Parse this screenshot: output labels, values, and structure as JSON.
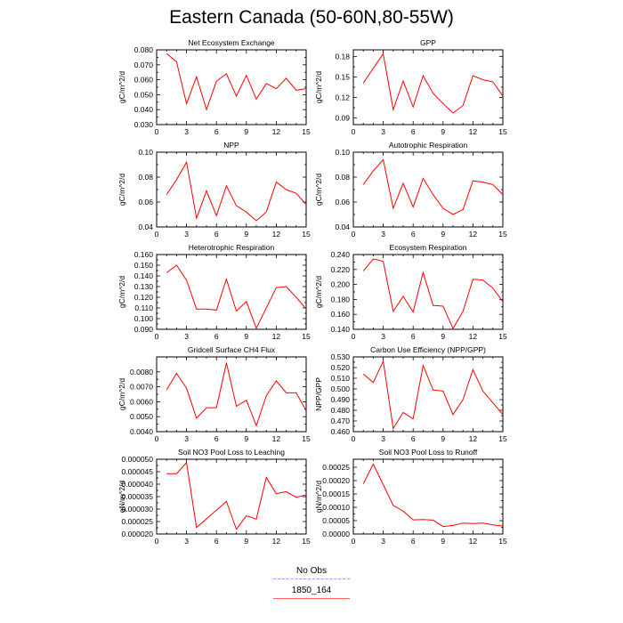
{
  "title": "Eastern Canada (50-60N,80-55W)",
  "legend": {
    "entries": [
      {
        "label": "No Obs",
        "color": "#9b9bf0",
        "dash": true
      },
      {
        "label": "1850_164",
        "color": "#ff6060",
        "dash": false
      }
    ]
  },
  "colors": {
    "series": "#ff0000"
  },
  "chart_data": [
    {
      "type": "line",
      "title": "Net Ecosystem Exchange",
      "ylabel": "gC/m^2/d",
      "xlim": [
        0,
        15
      ],
      "ylim": [
        0.03,
        0.08
      ],
      "xticks": [
        "0",
        "3",
        "6",
        "9",
        "12",
        "15"
      ],
      "yticks": [
        "0.030",
        "0.040",
        "0.050",
        "0.060",
        "0.070",
        "0.080"
      ],
      "series": [
        {
          "x": [
            1,
            2,
            3,
            4,
            5,
            6,
            7,
            8,
            9,
            10,
            11,
            12,
            13,
            14,
            15
          ],
          "values": [
            0.0775,
            0.072,
            0.044,
            0.062,
            0.04,
            0.059,
            0.064,
            0.049,
            0.063,
            0.047,
            0.0575,
            0.054,
            0.061,
            0.053,
            0.054
          ]
        }
      ]
    },
    {
      "type": "line",
      "title": "GPP",
      "ylabel": "gC/m^2/d",
      "xlim": [
        0,
        15
      ],
      "ylim": [
        0.08,
        0.19
      ],
      "xticks": [
        "0",
        "3",
        "6",
        "9",
        "12",
        "15"
      ],
      "yticks": [
        "0.09",
        "0.12",
        "0.15",
        "0.18"
      ],
      "series": [
        {
          "x": [
            1,
            2,
            3,
            4,
            5,
            6,
            7,
            8,
            9,
            10,
            11,
            12,
            13,
            14,
            15
          ],
          "values": [
            0.141,
            0.163,
            0.184,
            0.102,
            0.144,
            0.106,
            0.152,
            0.126,
            0.111,
            0.097,
            0.108,
            0.152,
            0.146,
            0.143,
            0.122
          ]
        }
      ]
    },
    {
      "type": "line",
      "title": "NPP",
      "ylabel": "gC/m^2/d",
      "xlim": [
        0,
        15
      ],
      "ylim": [
        0.04,
        0.1
      ],
      "xticks": [
        "0",
        "3",
        "6",
        "9",
        "12",
        "15"
      ],
      "yticks": [
        "0.04",
        "0.06",
        "0.08",
        "0.10"
      ],
      "series": [
        {
          "x": [
            1,
            2,
            3,
            4,
            5,
            6,
            7,
            8,
            9,
            10,
            11,
            12,
            13,
            14,
            15
          ],
          "values": [
            0.066,
            0.078,
            0.092,
            0.047,
            0.069,
            0.049,
            0.073,
            0.057,
            0.052,
            0.045,
            0.052,
            0.076,
            0.07,
            0.067,
            0.058
          ]
        }
      ]
    },
    {
      "type": "line",
      "title": "Autotrophic Respiration",
      "ylabel": "gC/m^2/d",
      "xlim": [
        0,
        15
      ],
      "ylim": [
        0.04,
        0.1
      ],
      "xticks": [
        "0",
        "3",
        "6",
        "9",
        "12",
        "15"
      ],
      "yticks": [
        "0.04",
        "0.06",
        "0.08",
        "0.10"
      ],
      "series": [
        {
          "x": [
            1,
            2,
            3,
            4,
            5,
            6,
            7,
            8,
            9,
            10,
            11,
            12,
            13,
            14,
            15
          ],
          "values": [
            0.074,
            0.085,
            0.094,
            0.055,
            0.075,
            0.056,
            0.079,
            0.066,
            0.055,
            0.05,
            0.054,
            0.077,
            0.076,
            0.074,
            0.066
          ]
        }
      ]
    },
    {
      "type": "line",
      "title": "Heterotrophic Respiration",
      "ylabel": "gC/m^2/d",
      "xlim": [
        0,
        15
      ],
      "ylim": [
        0.09,
        0.16
      ],
      "xticks": [
        "0",
        "3",
        "6",
        "9",
        "12",
        "15"
      ],
      "yticks": [
        "0.090",
        "0.100",
        "0.110",
        "0.120",
        "0.130",
        "0.140",
        "0.150",
        "0.160"
      ],
      "series": [
        {
          "x": [
            1,
            2,
            3,
            4,
            5,
            6,
            7,
            8,
            9,
            10,
            11,
            12,
            13,
            14,
            15
          ],
          "values": [
            0.143,
            0.15,
            0.136,
            0.109,
            0.109,
            0.108,
            0.137,
            0.107,
            0.116,
            0.091,
            0.11,
            0.129,
            0.13,
            0.12,
            0.109
          ]
        }
      ]
    },
    {
      "type": "line",
      "title": "Ecosystem Respiration",
      "ylabel": "gC/m^2/d",
      "xlim": [
        0,
        15
      ],
      "ylim": [
        0.14,
        0.24
      ],
      "xticks": [
        "0",
        "3",
        "6",
        "9",
        "12",
        "15"
      ],
      "yticks": [
        "0.140",
        "0.160",
        "0.180",
        "0.200",
        "0.220",
        "0.240"
      ],
      "series": [
        {
          "x": [
            1,
            2,
            3,
            4,
            5,
            6,
            7,
            8,
            9,
            10,
            11,
            12,
            13,
            14,
            15
          ],
          "values": [
            0.218,
            0.234,
            0.231,
            0.164,
            0.184,
            0.163,
            0.216,
            0.172,
            0.171,
            0.141,
            0.164,
            0.207,
            0.206,
            0.195,
            0.177
          ]
        }
      ]
    },
    {
      "type": "line",
      "title": "Gridcell Surface CH4 Flux",
      "ylabel": "gC/m^2/d",
      "xlim": [
        0,
        15
      ],
      "ylim": [
        0.004,
        0.009
      ],
      "xticks": [
        "0",
        "3",
        "6",
        "9",
        "12",
        "15"
      ],
      "yticks": [
        "0.0040",
        "0.0050",
        "0.0060",
        "0.0070",
        "0.0080"
      ],
      "series": [
        {
          "x": [
            1,
            2,
            3,
            4,
            5,
            6,
            7,
            8,
            9,
            10,
            11,
            12,
            13,
            14,
            15
          ],
          "values": [
            0.0068,
            0.0079,
            0.0069,
            0.0049,
            0.0056,
            0.0056,
            0.0086,
            0.0057,
            0.0061,
            0.0044,
            0.0064,
            0.0074,
            0.0066,
            0.0066,
            0.0054
          ]
        }
      ]
    },
    {
      "type": "line",
      "title": "Carbon Use Efficiency (NPP/GPP)",
      "ylabel": "NPP/GPP",
      "xlim": [
        0,
        15
      ],
      "ylim": [
        0.46,
        0.53
      ],
      "xticks": [
        "0",
        "3",
        "6",
        "9",
        "12",
        "15"
      ],
      "yticks": [
        "0.460",
        "0.470",
        "0.480",
        "0.490",
        "0.500",
        "0.510",
        "0.520",
        "0.530"
      ],
      "series": [
        {
          "x": [
            1,
            2,
            3,
            4,
            5,
            6,
            7,
            8,
            9,
            10,
            11,
            12,
            13,
            14,
            15
          ],
          "values": [
            0.514,
            0.506,
            0.526,
            0.463,
            0.478,
            0.472,
            0.522,
            0.499,
            0.498,
            0.476,
            0.49,
            0.518,
            0.498,
            0.487,
            0.476
          ]
        }
      ]
    },
    {
      "type": "line",
      "title": "Soil NO3 Pool Loss to Leaching",
      "ylabel": "gN/m^2/d",
      "xlim": [
        0,
        15
      ],
      "ylim": [
        2e-05,
        5e-05
      ],
      "xticks": [
        "0",
        "3",
        "6",
        "9",
        "12",
        "15"
      ],
      "yticks": [
        "0.000020",
        "0.000025",
        "0.000030",
        "0.000035",
        "0.000040",
        "0.000045",
        "0.000050"
      ],
      "series": [
        {
          "x": [
            1,
            2,
            3,
            4,
            7,
            8,
            9,
            10,
            11,
            12,
            13,
            14,
            15
          ],
          "values": [
            4.42e-05,
            4.42e-05,
            4.86e-05,
            2.26e-05,
            3.31e-05,
            2.19e-05,
            2.73e-05,
            2.6e-05,
            4.27e-05,
            3.62e-05,
            3.7e-05,
            3.47e-05,
            3.57e-05
          ]
        }
      ]
    },
    {
      "type": "line",
      "title": "Soil NO3 Pool Loss to Runoff",
      "ylabel": "gN/m^2/d",
      "xlim": [
        0,
        15
      ],
      "ylim": [
        0.0,
        0.00028
      ],
      "xticks": [
        "0",
        "3",
        "6",
        "9",
        "12",
        "15"
      ],
      "yticks": [
        "0.00000",
        "0.00005",
        "0.00010",
        "0.00015",
        "0.00020",
        "0.00025"
      ],
      "series": [
        {
          "x": [
            1,
            2,
            3,
            4,
            5,
            6,
            7,
            8,
            9,
            10,
            11,
            12,
            13,
            14,
            15
          ],
          "values": [
            0.000188,
            0.000262,
            0.000185,
            0.000107,
            8.6e-05,
            5.3e-05,
            5.4e-05,
            5.2e-05,
            2.8e-05,
            3.2e-05,
            4.1e-05,
            3.9e-05,
            4.1e-05,
            3.4e-05,
            3e-05
          ]
        }
      ]
    }
  ]
}
